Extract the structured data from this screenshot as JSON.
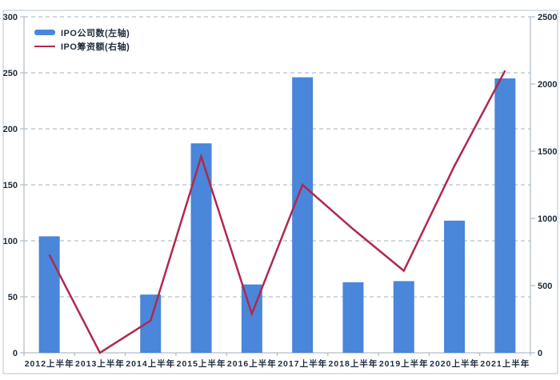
{
  "chart_data": {
    "type": "combo-bar-line",
    "title": "",
    "categories": [
      "2012上半年",
      "2013上半年",
      "2014上半年",
      "2015上半年",
      "2016上半年",
      "2017上半年",
      "2018上半年",
      "2019上半年",
      "2020上半年",
      "2021上半年"
    ],
    "series": [
      {
        "name": "IPO公司数(左轴)",
        "type": "bar",
        "axis": "left",
        "color": "#4a86d9",
        "values": [
          104,
          0,
          52,
          187,
          61,
          246,
          63,
          64,
          118,
          245
        ]
      },
      {
        "name": "IPO筹资额(右轴)",
        "type": "line",
        "axis": "right",
        "color": "#b0294e",
        "values": [
          730,
          0,
          240,
          1460,
          290,
          1250,
          920,
          610,
          1390,
          2100
        ]
      }
    ],
    "left_axis": {
      "min": 0,
      "max": 300,
      "step": 50,
      "tick_labels": [
        "0",
        "50",
        "100",
        "150",
        "200",
        "250",
        "300"
      ]
    },
    "right_axis": {
      "min": 0,
      "max": 2500,
      "step": 500,
      "tick_labels": [
        "0",
        "500",
        "1000",
        "1500",
        "2000",
        "2500"
      ]
    },
    "grid": "horizontal-dashed",
    "legend_position": "top-left-inside",
    "colors": {
      "gridline": "#b4c1cb",
      "axis": "#a0adb8",
      "tick_text": "#1e2c3c",
      "frame_border": "#b6c4d2",
      "background": "#ffffff"
    }
  }
}
